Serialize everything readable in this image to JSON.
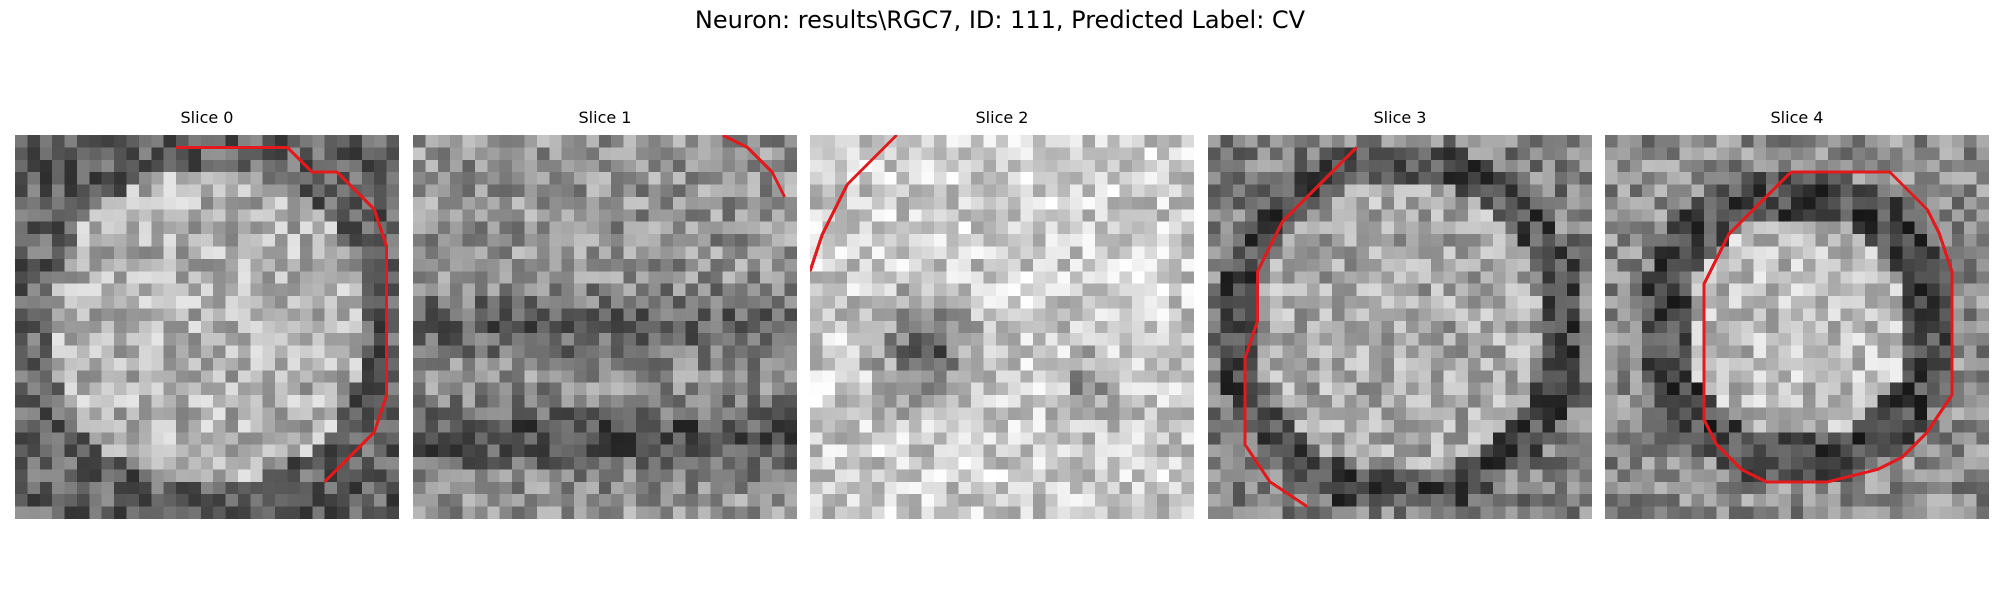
{
  "figure": {
    "suptitle": "Neuron: results\\RGC7, ID: 111, Predicted Label: CV",
    "contour_color": "#e31a1c"
  },
  "panels": [
    {
      "title": "Slice 0",
      "image_description": "noisy grayscale patch with a bright roughly circular cell body",
      "contour": [
        [
          13,
          1
        ],
        [
          22,
          1
        ],
        [
          24,
          3
        ],
        [
          26,
          3
        ],
        [
          29,
          6
        ],
        [
          30,
          9
        ],
        [
          30,
          21
        ],
        [
          29,
          24
        ],
        [
          26,
          27
        ],
        [
          25,
          28
        ]
      ]
    },
    {
      "title": "Slice 1",
      "image_description": "noisy grayscale patch with dark horizontal bands",
      "contour": [
        [
          25,
          0
        ],
        [
          27,
          1
        ],
        [
          29,
          3
        ],
        [
          30,
          5
        ]
      ]
    },
    {
      "title": "Slice 2",
      "image_description": "grayscale patch with a bright ring and dark center",
      "contour": [
        [
          7,
          0
        ],
        [
          5,
          2
        ],
        [
          3,
          4
        ],
        [
          2,
          6
        ],
        [
          1,
          8
        ],
        [
          0,
          11
        ]
      ]
    },
    {
      "title": "Slice 3",
      "image_description": "grayscale patch with bright oval soma and dark border",
      "contour": [
        [
          12,
          1
        ],
        [
          9,
          4
        ],
        [
          6,
          7
        ],
        [
          5,
          9
        ],
        [
          4,
          11
        ],
        [
          4,
          15
        ],
        [
          3,
          18
        ],
        [
          3,
          25
        ],
        [
          5,
          28
        ],
        [
          8,
          30
        ]
      ]
    },
    {
      "title": "Slice 4",
      "image_description": "grayscale patch with bright central soma surrounded by a dark ring",
      "contour": [
        [
          15,
          3
        ],
        [
          23,
          3
        ],
        [
          24,
          4
        ],
        [
          26,
          6
        ],
        [
          27,
          8
        ],
        [
          28,
          11
        ],
        [
          28,
          21
        ],
        [
          26,
          24
        ],
        [
          24,
          26
        ],
        [
          22,
          27
        ],
        [
          18,
          28
        ],
        [
          13,
          28
        ],
        [
          11,
          27
        ],
        [
          9,
          25
        ],
        [
          8,
          23
        ],
        [
          8,
          12
        ],
        [
          9,
          10
        ],
        [
          10,
          8
        ],
        [
          12,
          6
        ],
        [
          14,
          4
        ],
        [
          15,
          3
        ]
      ]
    }
  ]
}
